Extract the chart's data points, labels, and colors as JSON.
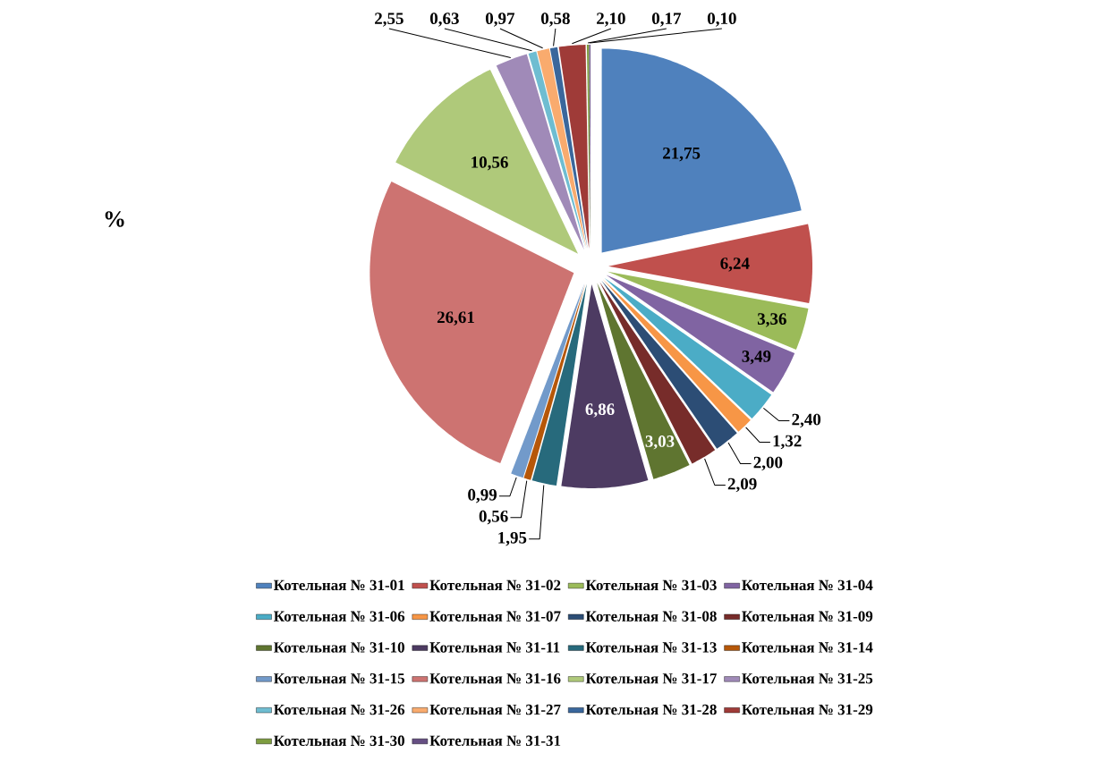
{
  "chart_data": {
    "type": "pie",
    "categories": [
      "Котельная № 31-01",
      "Котельная № 31-02",
      "Котельная № 31-03",
      "Котельная № 31-04",
      "Котельная № 31-06",
      "Котельная № 31-07",
      "Котельная № 31-08",
      "Котельная № 31-09",
      "Котельная № 31-10",
      "Котельная № 31-11",
      "Котельная № 31-13",
      "Котельная № 31-14",
      "Котельная № 31-15",
      "Котельная № 31-16",
      "Котельная № 31-17",
      "Котельная № 31-25",
      "Котельная № 31-26",
      "Котельная № 31-27",
      "Котельная № 31-28",
      "Котельная № 31-29",
      "Котельная № 31-30",
      "Котельная № 31-31"
    ],
    "values": [
      21.75,
      6.24,
      3.36,
      3.49,
      2.4,
      1.32,
      2.0,
      2.09,
      3.03,
      6.86,
      1.95,
      0.56,
      0.99,
      26.61,
      10.56,
      2.55,
      0.63,
      0.97,
      0.58,
      2.1,
      0.17,
      0.1
    ],
    "value_labels": [
      "21,75",
      "6,24",
      "3,36",
      "3,49",
      "2,40",
      "1,32",
      "2,00",
      "2,09",
      "3,03",
      "6,86",
      "1,95",
      "0,56",
      "0,99",
      "26,61",
      "10,56",
      "2,55",
      "0,63",
      "0,97",
      "0,58",
      "2,10",
      "0,17",
      "0,10"
    ],
    "colors": [
      "#4f81bd",
      "#c0504d",
      "#9bbb59",
      "#8064a2",
      "#4bacc6",
      "#f79646",
      "#2c4d75",
      "#772c2a",
      "#5f7530",
      "#4d3b62",
      "#276a7c",
      "#b65708",
      "#729aca",
      "#cd7371",
      "#afc97a",
      "#a08ab8",
      "#6fbdd1",
      "#f9ab6e",
      "#3a679c",
      "#9f3b38",
      "#7e9d40",
      "#664f83"
    ],
    "legend": "bottom",
    "annotations": [
      "%"
    ]
  }
}
